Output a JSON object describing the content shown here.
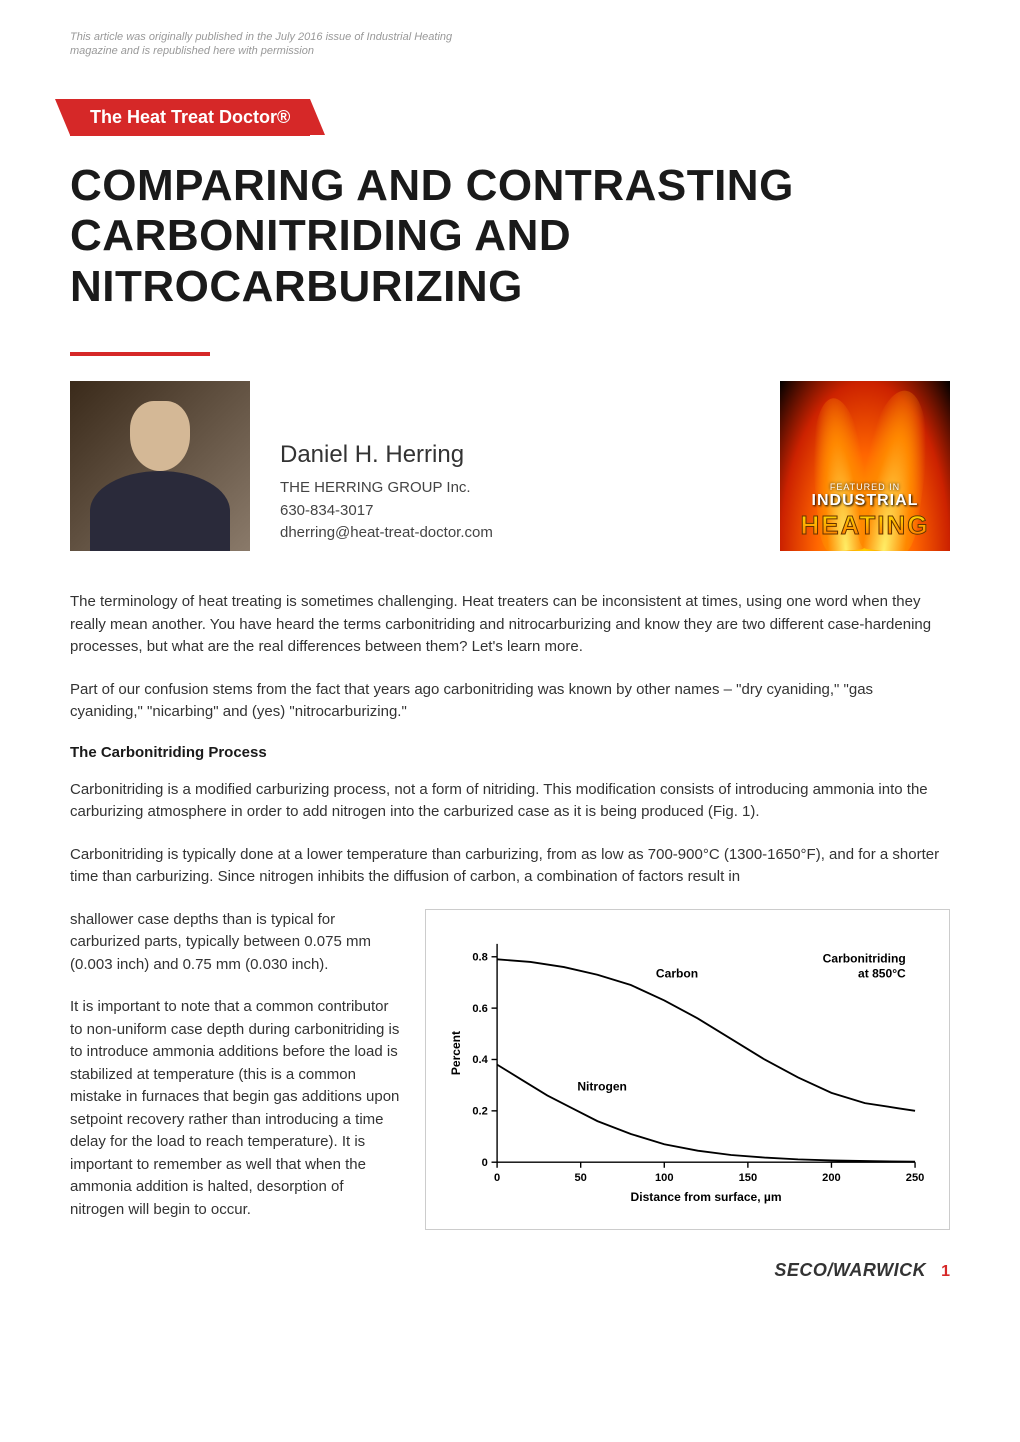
{
  "attribution": "This article was originally published in the July 2016 issue of Industrial Heating magazine and is republished here with permission",
  "badge": "The Heat Treat Doctor®",
  "title": "COMPARING AND CONTRASTING CARBONITRIDING AND NITROCARBURIZING",
  "author": {
    "name": "Daniel H. Herring",
    "org": "THE HERRING GROUP Inc.",
    "phone": "630-834-3017",
    "email": "dherring@heat-treat-doctor.com"
  },
  "flame_logo": {
    "featured": "FEATURED IN",
    "line1": "INDUSTRIAL",
    "line2": "HEATING"
  },
  "paragraphs": {
    "p1": "The terminology of heat treating is sometimes challenging. Heat treaters can be inconsistent at times, using one word when they really mean another. You have heard the terms carbonitriding and nitrocarburizing and know they are two different case-hardening processes, but what are the real differences between them? Let's learn more.",
    "p2": "Part of our confusion stems from the fact that years ago carbonitriding was known by other names – \"dry cyaniding,\" \"gas cyaniding,\" \"nicarbing\" and (yes) \"nitrocarburizing.\"",
    "h1": "The Carbonitriding Process",
    "p3": "Carbonitriding is a modified carburizing process, not a form of nitriding. This modification consists of introducing ammonia into the carburizing atmosphere in order to add nitrogen into the carburized case as it is being produced (Fig. 1).",
    "p4_lead": "Carbonitriding is typically done at a lower temperature than carburizing, from as low as 700-900°C (1300-1650°F), and for a shorter time than carburizing. Since nitrogen inhibits the diffusion of carbon, a combination of factors result in",
    "p4_tail": "shallower case depths than is typical for carburized parts, typically between 0.075 mm (0.003 inch) and 0.75 mm (0.030 inch).",
    "p5": "It is important to note that a common contributor to non-uniform case depth during carbonitriding is to introduce ammonia additions before the load is stabilized at temperature (this is a common mistake in furnaces that begin gas additions upon setpoint recovery rather than introducing a time delay for the load to reach temperature). It is important to remember as well that when the ammonia addition is halted, desorption of nitrogen will begin to occur."
  },
  "chart": {
    "type": "line",
    "title_lines": [
      "Carbonitriding",
      "at 850°C"
    ],
    "xlabel": "Distance from surface, µm",
    "ylabel": "Percent",
    "xlim": [
      0,
      250
    ],
    "ylim": [
      0,
      0.85
    ],
    "xticks": [
      0,
      50,
      100,
      150,
      200,
      250
    ],
    "yticks": [
      0,
      0.2,
      0.4,
      0.6,
      0.8
    ],
    "series": [
      {
        "name": "Carbon",
        "label": "Carbon",
        "color": "#000000",
        "line_width": 2,
        "points": [
          [
            0,
            0.79
          ],
          [
            20,
            0.78
          ],
          [
            40,
            0.76
          ],
          [
            60,
            0.73
          ],
          [
            80,
            0.69
          ],
          [
            100,
            0.63
          ],
          [
            120,
            0.56
          ],
          [
            140,
            0.48
          ],
          [
            160,
            0.4
          ],
          [
            180,
            0.33
          ],
          [
            200,
            0.27
          ],
          [
            220,
            0.23
          ],
          [
            240,
            0.21
          ],
          [
            250,
            0.2
          ]
        ]
      },
      {
        "name": "Nitrogen",
        "label": "Nitrogen",
        "color": "#000000",
        "line_width": 2,
        "points": [
          [
            0,
            0.38
          ],
          [
            15,
            0.32
          ],
          [
            30,
            0.26
          ],
          [
            45,
            0.21
          ],
          [
            60,
            0.16
          ],
          [
            80,
            0.11
          ],
          [
            100,
            0.07
          ],
          [
            120,
            0.045
          ],
          [
            140,
            0.028
          ],
          [
            160,
            0.018
          ],
          [
            180,
            0.011
          ],
          [
            200,
            0.007
          ],
          [
            225,
            0.004
          ],
          [
            250,
            0.002
          ]
        ]
      }
    ],
    "label_positions": {
      "Carbon": [
        95,
        0.72
      ],
      "Nitrogen": [
        48,
        0.28
      ]
    },
    "label_fontsize": 13,
    "tick_fontsize": 12,
    "axis_label_fontsize": 13,
    "axis_label_weight": "bold",
    "background": "#ffffff",
    "axis_color": "#000000"
  },
  "footer": {
    "brand": "SECO/WARWICK",
    "page": "1"
  },
  "colors": {
    "brand_red": "#d62828",
    "text": "#333333",
    "muted": "#999999"
  }
}
